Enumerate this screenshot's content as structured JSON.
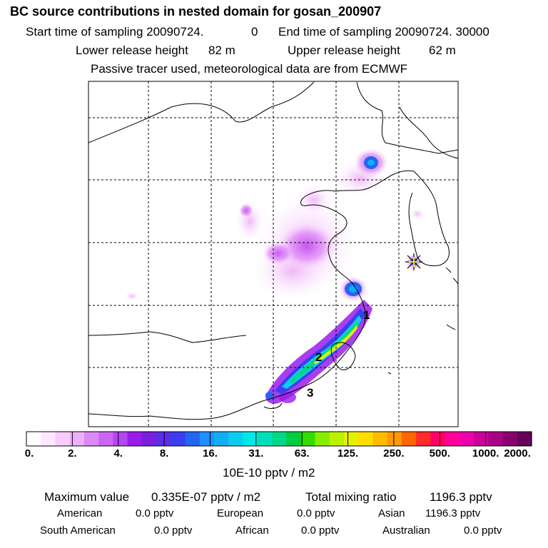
{
  "header": {
    "title": "BC  source contributions in nested domain for gosan_200907",
    "start_label": "Start time of sampling 20090724.",
    "start_value": "0",
    "end_label": "End time of sampling 20090724. 30000",
    "lower_label": "Lower release height",
    "lower_value": "82 m",
    "upper_label": "Upper release height",
    "upper_value": "62 m",
    "tracer_note": "Passive tracer used, meteorological data are from ECMWF"
  },
  "map": {
    "markers": [
      "1",
      "2",
      "3"
    ],
    "station_icon": "receptor-star-icon"
  },
  "colorbar": {
    "colors": [
      "#ffffff",
      "#fde8ff",
      "#f7ccfb",
      "#eeb0f8",
      "#dd88f5",
      "#cc66f2",
      "#b646ef",
      "#9a1bec",
      "#7a1fe0",
      "#5a2ee8",
      "#3a3ef0",
      "#2366f2",
      "#1e90ff",
      "#12aef5",
      "#0ccdf0",
      "#00e8e8",
      "#00e0b8",
      "#00d888",
      "#00cc44",
      "#33dd00",
      "#88ee00",
      "#bbf200",
      "#e6f000",
      "#ffdd00",
      "#ffbb00",
      "#ff9900",
      "#ff6600",
      "#ff2a2a",
      "#ff0066",
      "#ff0099",
      "#ee00aa",
      "#cc0099",
      "#aa0088",
      "#880070",
      "#660058"
    ],
    "tick_labels": [
      "0.",
      "2.",
      "4.",
      "8.",
      "16.",
      "31.",
      "63.",
      "125.",
      "250.",
      "500.",
      "1000.",
      "2000."
    ],
    "units": "10E-10 pptv / m2"
  },
  "stats": {
    "max_label": "Maximum value",
    "max_value": "0.335E-07 pptv / m2",
    "total_label": "Total mixing ratio",
    "total_value": "1196.3 pptv",
    "regions": [
      {
        "name": "American",
        "value": "0.0 pptv"
      },
      {
        "name": "European",
        "value": "0.0 pptv"
      },
      {
        "name": "Asian",
        "value": "1196.3 pptv"
      },
      {
        "name": "South American",
        "value": "0.0 pptv"
      },
      {
        "name": "African",
        "value": "0.0 pptv"
      },
      {
        "name": "Australian",
        "value": "0.0 pptv"
      }
    ]
  }
}
